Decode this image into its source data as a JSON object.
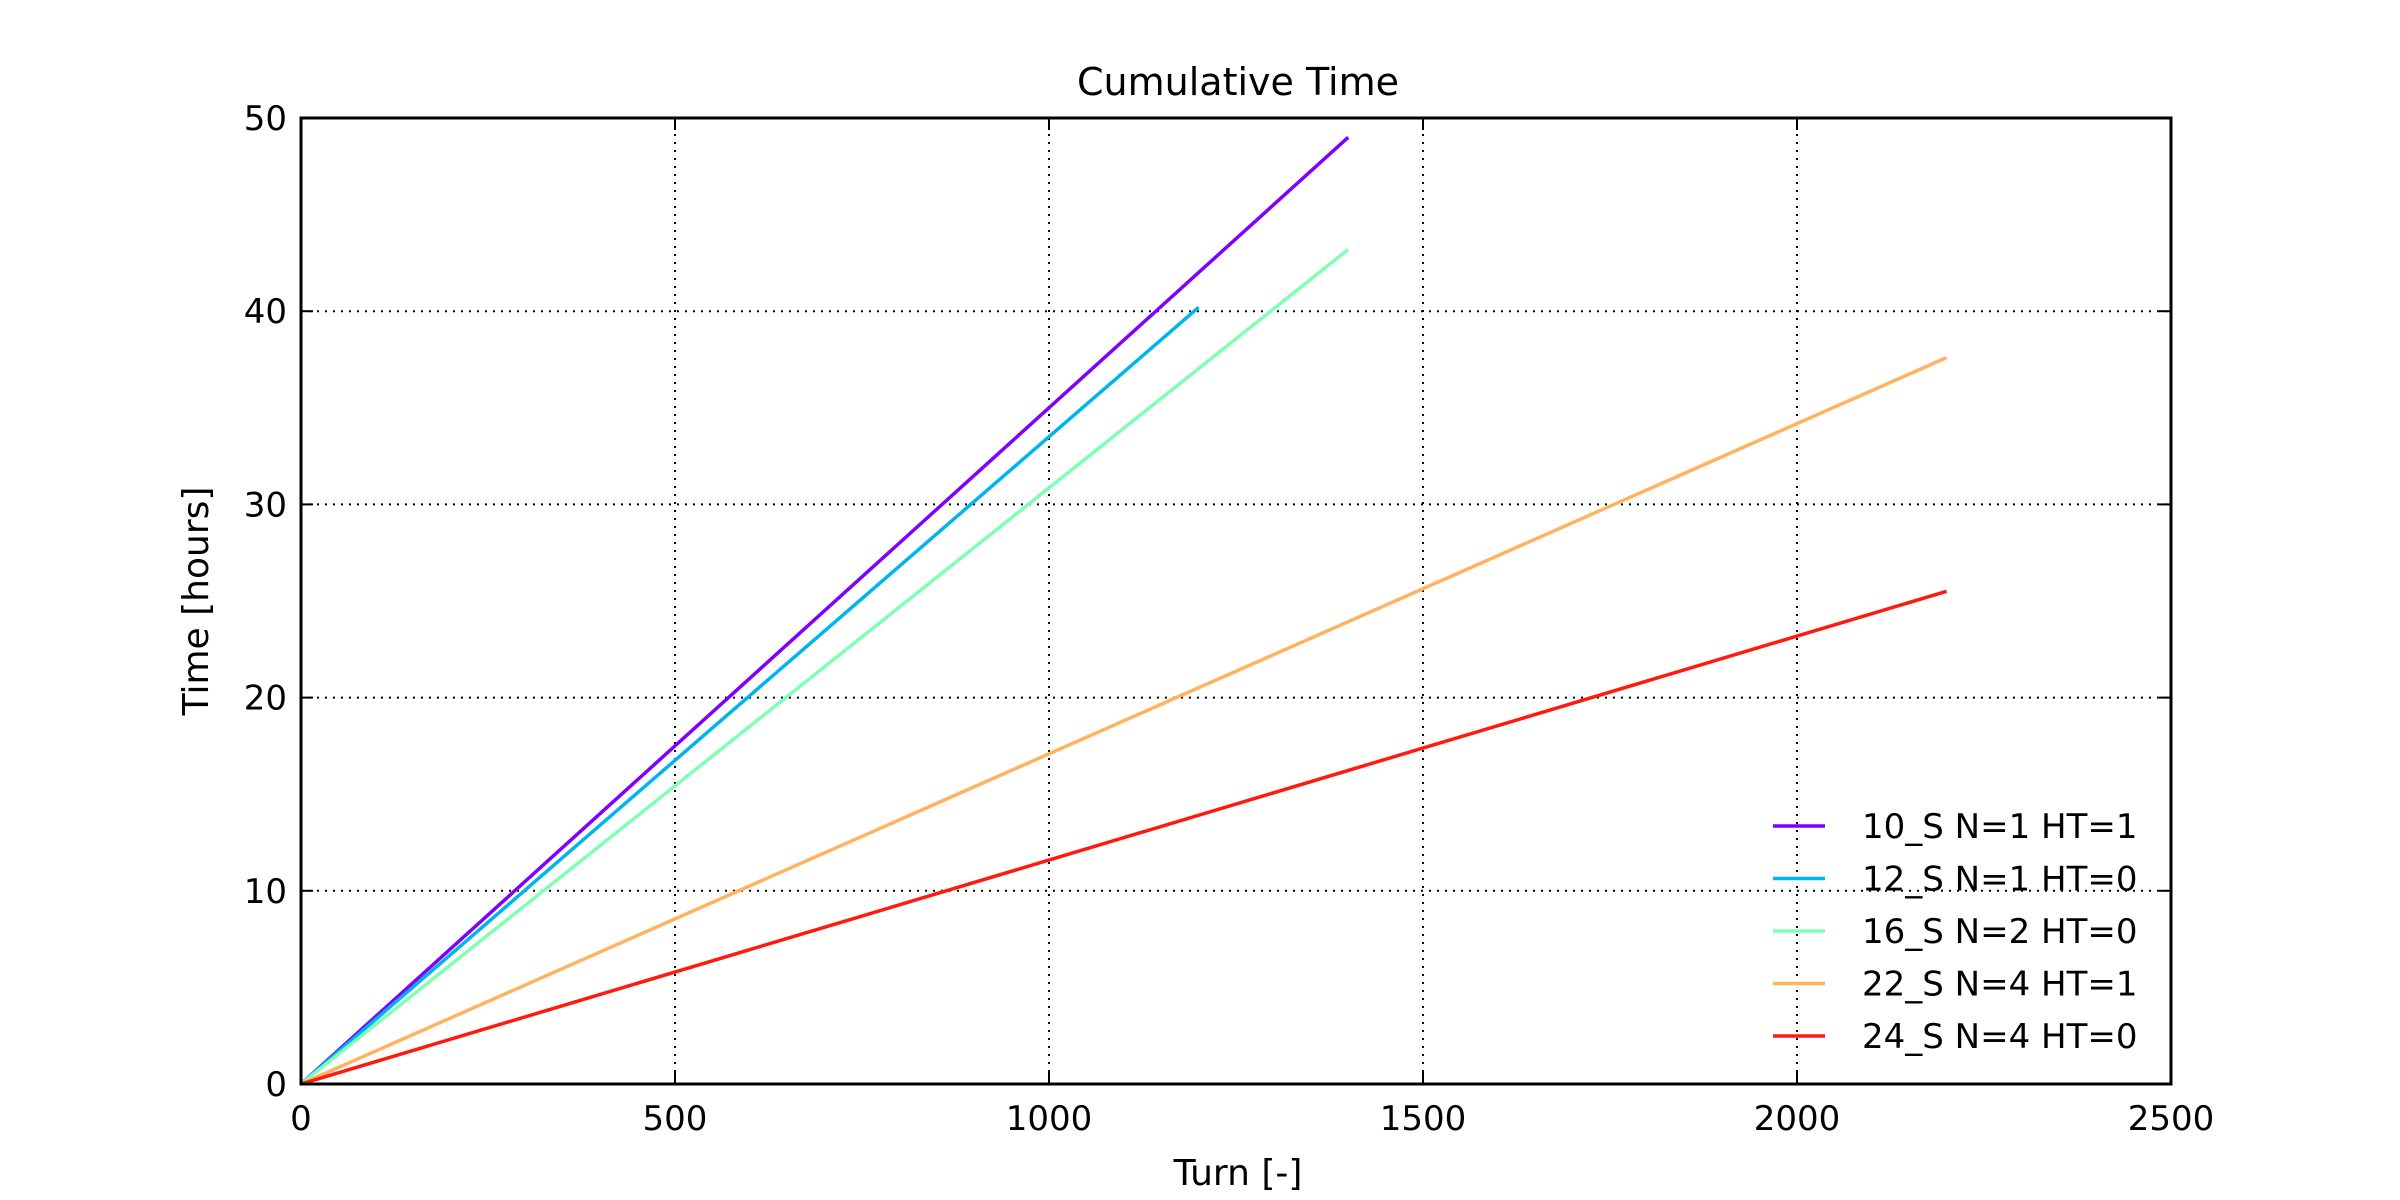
{
  "chart_data": {
    "type": "line",
    "title": "Cumulative Time",
    "xlabel": "Turn [-]",
    "ylabel": "Time [hours]",
    "xlim": [
      0,
      2500
    ],
    "ylim": [
      0,
      50
    ],
    "xticks": [
      0,
      500,
      1000,
      1500,
      2000,
      2500
    ],
    "yticks": [
      0,
      10,
      20,
      30,
      40,
      50
    ],
    "xtick_labels": [
      "0",
      "500",
      "1000",
      "1500",
      "2000",
      "2500"
    ],
    "ytick_labels": [
      "0",
      "10",
      "20",
      "30",
      "40",
      "50"
    ],
    "grid": true,
    "legend_position": "lower-right",
    "series": [
      {
        "name": "10_S N=1 HT=1",
        "color": "#8000ff",
        "x": [
          0,
          1400
        ],
        "y": [
          0,
          49.0
        ]
      },
      {
        "name": "12_S N=1 HT=0",
        "color": "#00b5eb",
        "x": [
          0,
          1200
        ],
        "y": [
          0,
          40.2
        ]
      },
      {
        "name": "16_S N=2 HT=0",
        "color": "#80ffb4",
        "x": [
          0,
          1400
        ],
        "y": [
          0,
          43.2
        ]
      },
      {
        "name": "22_S N=4 HT=1",
        "color": "#ffb360",
        "x": [
          0,
          2200
        ],
        "y": [
          0,
          37.6
        ]
      },
      {
        "name": "24_S N=4 HT=0",
        "color": "#ff1a0e",
        "x": [
          0,
          2200
        ],
        "y": [
          0,
          25.5
        ]
      }
    ]
  }
}
